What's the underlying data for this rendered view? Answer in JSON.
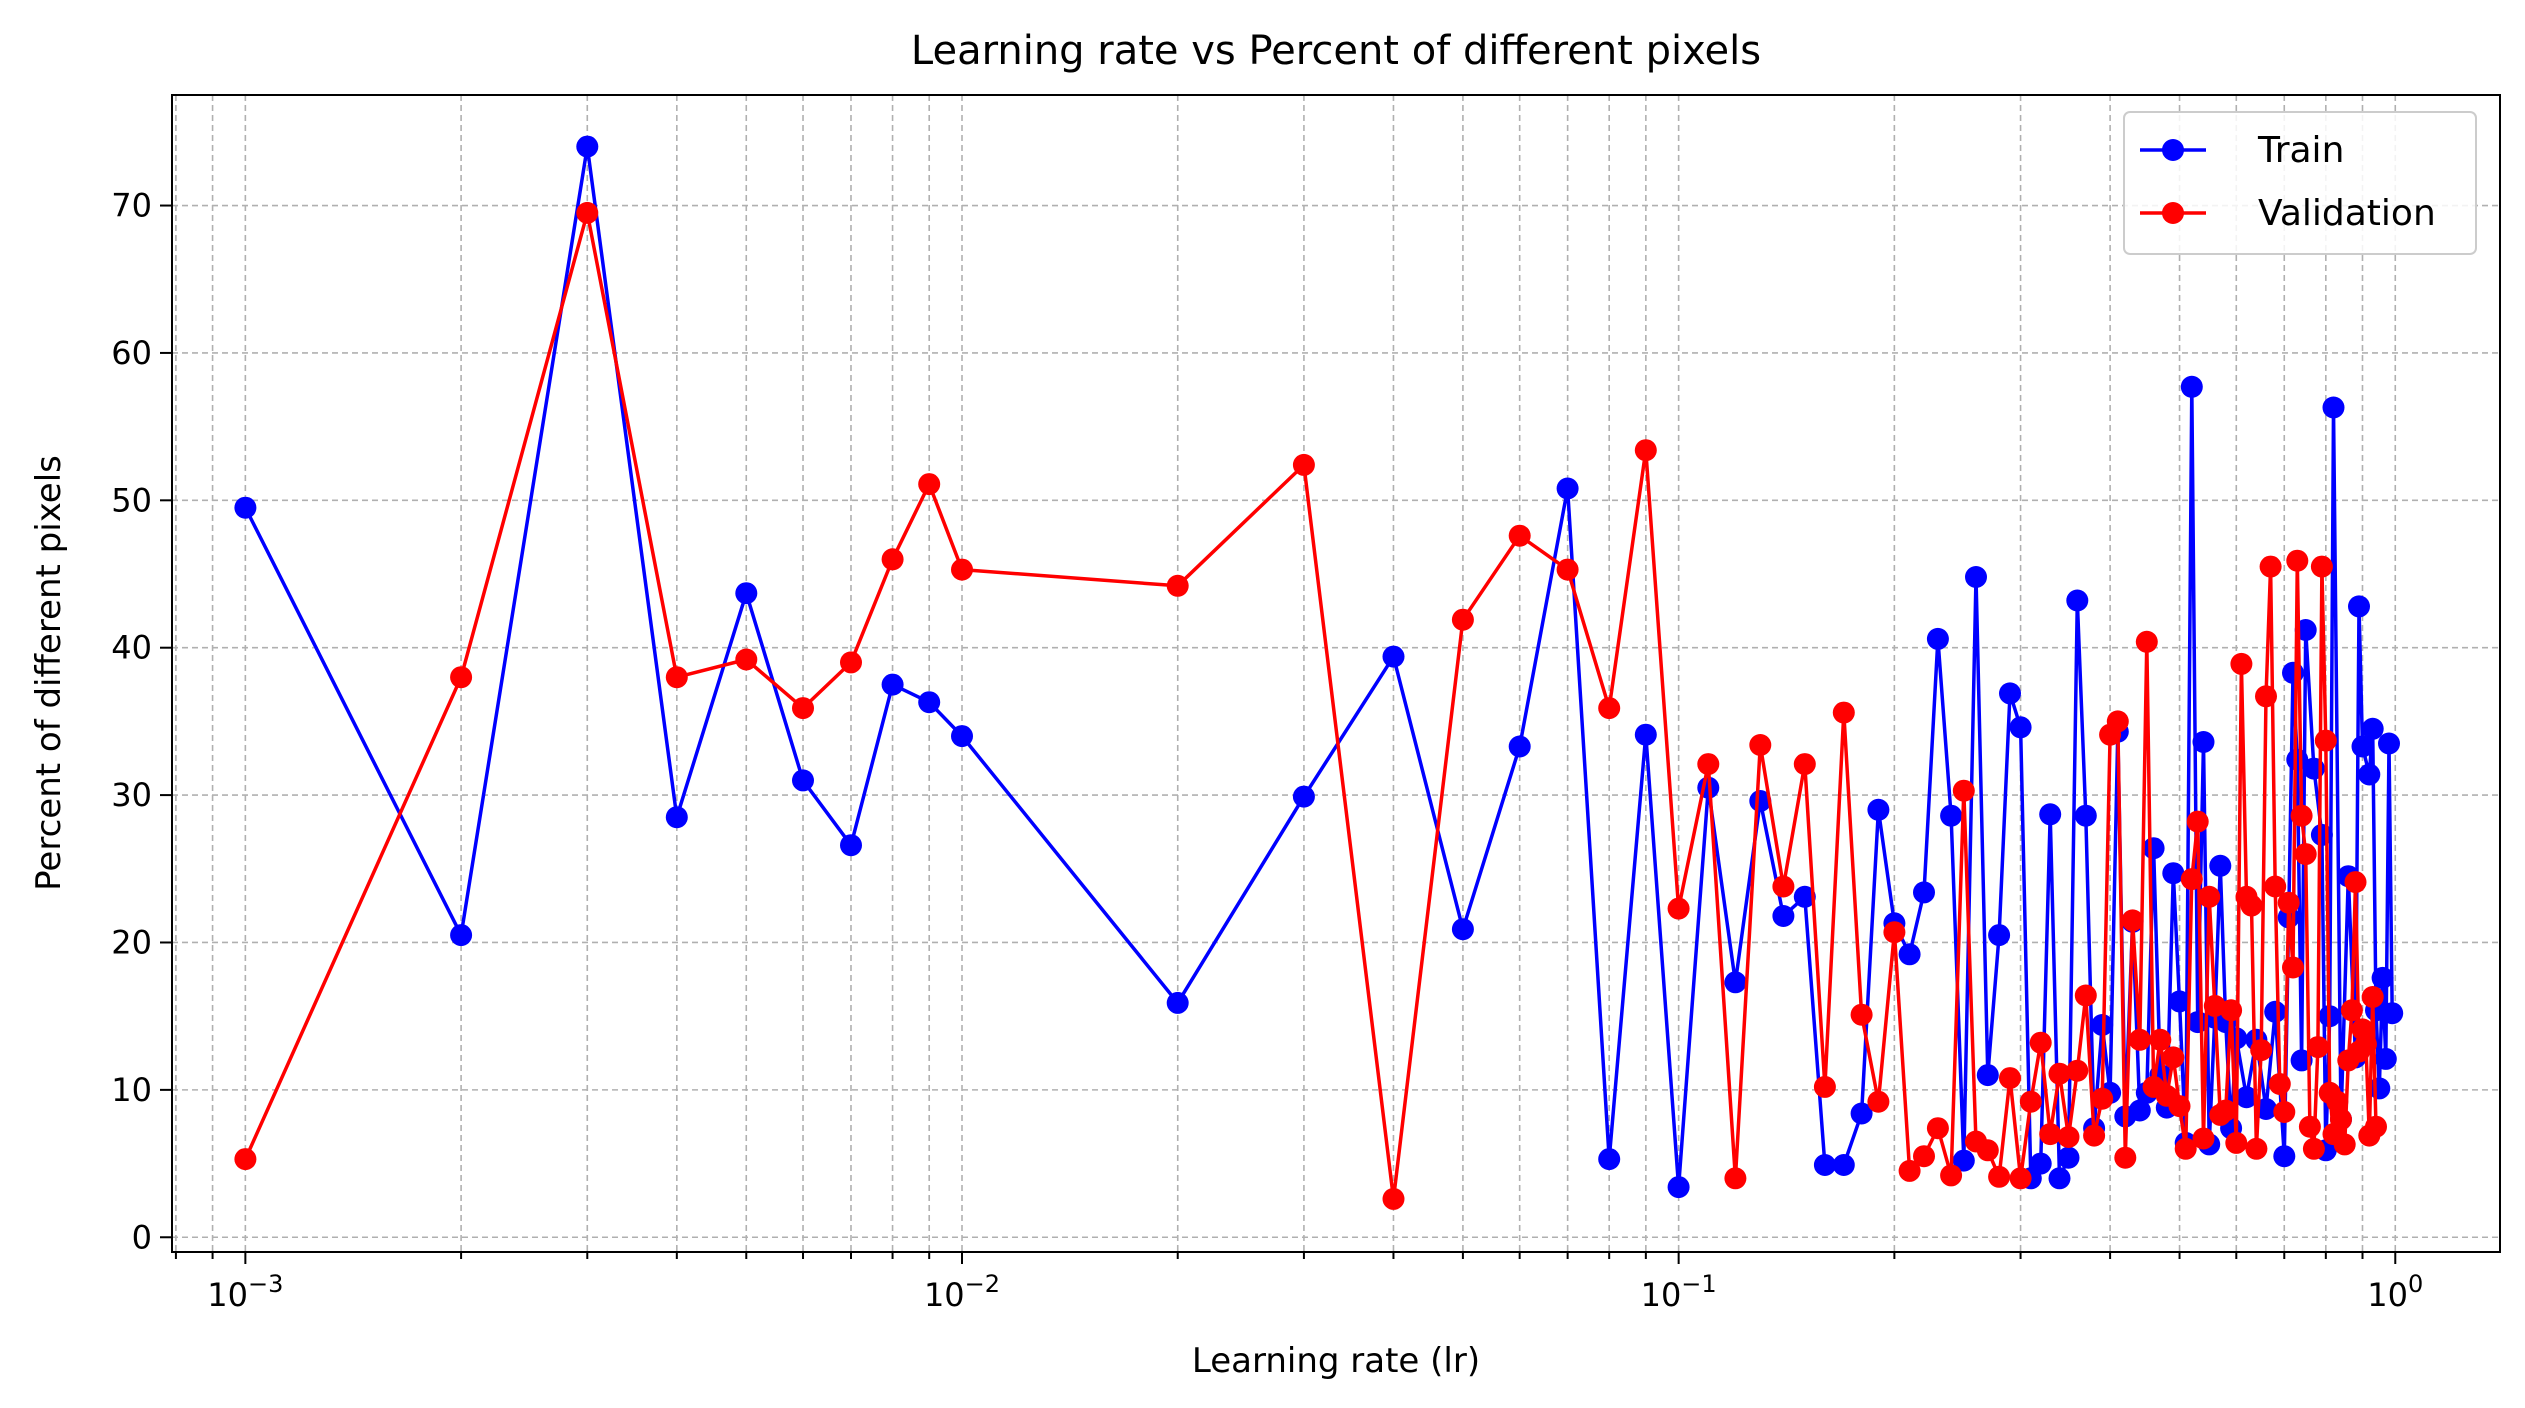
{
  "chart_data": {
    "type": "line",
    "title": "Learning rate vs Percent of different pixels",
    "xlabel": "Learning rate (lr)",
    "ylabel": "Percent of different pixels",
    "xscale": "log",
    "xlim": [
      0.00079,
      1.4
    ],
    "ylim": [
      -1,
      77.5
    ],
    "grid": true,
    "legend_position": "top-right",
    "x_ticks": [
      {
        "value": 0.001,
        "base": "10",
        "exp": "−3"
      },
      {
        "value": 0.01,
        "base": "10",
        "exp": "−2"
      },
      {
        "value": 0.1,
        "base": "10",
        "exp": "−1"
      },
      {
        "value": 1,
        "base": "10",
        "exp": "0"
      }
    ],
    "y_ticks": [
      0,
      10,
      20,
      30,
      40,
      50,
      60,
      70
    ],
    "series": [
      {
        "name": "Train",
        "color": "#0000ff",
        "points": [
          [
            0.001,
            49.5
          ],
          [
            0.002,
            20.5
          ],
          [
            0.003,
            74.0
          ],
          [
            0.004,
            28.5
          ],
          [
            0.005,
            43.7
          ],
          [
            0.006,
            31.0
          ],
          [
            0.007,
            26.6
          ],
          [
            0.008,
            37.5
          ],
          [
            0.009,
            36.3
          ],
          [
            0.01,
            34.0
          ],
          [
            0.02,
            15.9
          ],
          [
            0.03,
            29.9
          ],
          [
            0.04,
            39.4
          ],
          [
            0.05,
            20.9
          ],
          [
            0.06,
            33.3
          ],
          [
            0.07,
            50.8
          ],
          [
            0.08,
            5.3
          ],
          [
            0.09,
            34.1
          ],
          [
            0.1,
            3.4
          ],
          [
            0.11,
            30.5
          ],
          [
            0.12,
            17.3
          ],
          [
            0.13,
            29.6
          ],
          [
            0.14,
            21.8
          ],
          [
            0.15,
            23.1
          ],
          [
            0.16,
            4.9
          ],
          [
            0.17,
            4.9
          ],
          [
            0.18,
            8.4
          ],
          [
            0.19,
            29.0
          ],
          [
            0.2,
            21.3
          ],
          [
            0.21,
            19.2
          ],
          [
            0.22,
            23.4
          ],
          [
            0.23,
            40.6
          ],
          [
            0.24,
            28.6
          ],
          [
            0.25,
            5.2
          ],
          [
            0.26,
            44.8
          ],
          [
            0.27,
            11.0
          ],
          [
            0.28,
            20.5
          ],
          [
            0.29,
            36.9
          ],
          [
            0.3,
            34.6
          ],
          [
            0.31,
            4.0
          ],
          [
            0.32,
            5.0
          ],
          [
            0.33,
            28.7
          ],
          [
            0.34,
            4.0
          ],
          [
            0.35,
            5.4
          ],
          [
            0.36,
            43.2
          ],
          [
            0.37,
            28.6
          ],
          [
            0.38,
            7.4
          ],
          [
            0.39,
            14.4
          ],
          [
            0.4,
            9.8
          ],
          [
            0.41,
            34.3
          ],
          [
            0.42,
            8.2
          ],
          [
            0.43,
            21.4
          ],
          [
            0.44,
            8.6
          ],
          [
            0.45,
            9.8
          ],
          [
            0.46,
            26.4
          ],
          [
            0.47,
            11.0
          ],
          [
            0.48,
            8.8
          ],
          [
            0.49,
            24.7
          ],
          [
            0.5,
            16.0
          ],
          [
            0.51,
            6.4
          ],
          [
            0.52,
            57.7
          ],
          [
            0.53,
            14.6
          ],
          [
            0.54,
            33.6
          ],
          [
            0.55,
            6.3
          ],
          [
            0.56,
            14.9
          ],
          [
            0.57,
            25.2
          ],
          [
            0.58,
            14.6
          ],
          [
            0.59,
            7.4
          ],
          [
            0.6,
            13.5
          ],
          [
            0.62,
            9.5
          ],
          [
            0.64,
            13.4
          ],
          [
            0.66,
            8.7
          ],
          [
            0.68,
            15.3
          ],
          [
            0.7,
            5.5
          ],
          [
            0.71,
            21.7
          ],
          [
            0.72,
            38.3
          ],
          [
            0.73,
            32.4
          ],
          [
            0.74,
            12.0
          ],
          [
            0.75,
            41.2
          ],
          [
            0.77,
            31.8
          ],
          [
            0.79,
            27.3
          ],
          [
            0.8,
            5.9
          ],
          [
            0.81,
            15.0
          ],
          [
            0.82,
            56.3
          ],
          [
            0.84,
            8.0
          ],
          [
            0.86,
            24.5
          ],
          [
            0.88,
            12.2
          ],
          [
            0.89,
            42.8
          ],
          [
            0.9,
            33.3
          ],
          [
            0.92,
            31.4
          ],
          [
            0.93,
            34.5
          ],
          [
            0.94,
            15.4
          ],
          [
            0.95,
            10.1
          ],
          [
            0.96,
            17.6
          ],
          [
            0.97,
            12.1
          ],
          [
            0.98,
            33.5
          ],
          [
            0.99,
            15.2
          ]
        ]
      },
      {
        "name": "Validation",
        "color": "#ff0000",
        "points": [
          [
            0.001,
            5.3
          ],
          [
            0.002,
            38.0
          ],
          [
            0.003,
            69.5
          ],
          [
            0.004,
            38.0
          ],
          [
            0.005,
            39.2
          ],
          [
            0.006,
            35.9
          ],
          [
            0.007,
            39.0
          ],
          [
            0.008,
            46.0
          ],
          [
            0.009,
            51.1
          ],
          [
            0.01,
            45.3
          ],
          [
            0.02,
            44.2
          ],
          [
            0.03,
            52.4
          ],
          [
            0.04,
            2.6
          ],
          [
            0.05,
            41.9
          ],
          [
            0.06,
            47.6
          ],
          [
            0.07,
            45.3
          ],
          [
            0.08,
            35.9
          ],
          [
            0.09,
            53.4
          ],
          [
            0.1,
            22.3
          ],
          [
            0.11,
            32.1
          ],
          [
            0.12,
            4.0
          ],
          [
            0.13,
            33.4
          ],
          [
            0.14,
            23.8
          ],
          [
            0.15,
            32.1
          ],
          [
            0.16,
            10.2
          ],
          [
            0.17,
            35.6
          ],
          [
            0.18,
            15.1
          ],
          [
            0.19,
            9.2
          ],
          [
            0.2,
            20.7
          ],
          [
            0.21,
            4.5
          ],
          [
            0.22,
            5.5
          ],
          [
            0.23,
            7.4
          ],
          [
            0.24,
            4.2
          ],
          [
            0.25,
            30.3
          ],
          [
            0.26,
            6.5
          ],
          [
            0.27,
            5.9
          ],
          [
            0.28,
            4.1
          ],
          [
            0.29,
            10.8
          ],
          [
            0.3,
            4.0
          ],
          [
            0.31,
            9.2
          ],
          [
            0.32,
            13.2
          ],
          [
            0.33,
            7.0
          ],
          [
            0.34,
            11.1
          ],
          [
            0.35,
            6.8
          ],
          [
            0.36,
            11.3
          ],
          [
            0.37,
            16.4
          ],
          [
            0.38,
            6.9
          ],
          [
            0.39,
            9.4
          ],
          [
            0.4,
            34.1
          ],
          [
            0.41,
            35.0
          ],
          [
            0.42,
            5.4
          ],
          [
            0.43,
            21.5
          ],
          [
            0.44,
            13.4
          ],
          [
            0.45,
            40.4
          ],
          [
            0.46,
            10.2
          ],
          [
            0.47,
            13.4
          ],
          [
            0.48,
            9.6
          ],
          [
            0.49,
            12.2
          ],
          [
            0.5,
            8.9
          ],
          [
            0.51,
            6.0
          ],
          [
            0.52,
            24.3
          ],
          [
            0.53,
            28.2
          ],
          [
            0.54,
            6.7
          ],
          [
            0.55,
            23.1
          ],
          [
            0.56,
            15.7
          ],
          [
            0.57,
            8.3
          ],
          [
            0.58,
            8.6
          ],
          [
            0.59,
            15.4
          ],
          [
            0.6,
            6.4
          ],
          [
            0.61,
            38.9
          ],
          [
            0.62,
            23.1
          ],
          [
            0.63,
            22.5
          ],
          [
            0.64,
            6.0
          ],
          [
            0.65,
            12.7
          ],
          [
            0.66,
            36.7
          ],
          [
            0.67,
            45.5
          ],
          [
            0.68,
            23.8
          ],
          [
            0.69,
            10.4
          ],
          [
            0.7,
            8.5
          ],
          [
            0.71,
            22.7
          ],
          [
            0.72,
            18.3
          ],
          [
            0.73,
            45.9
          ],
          [
            0.74,
            28.6
          ],
          [
            0.75,
            26.0
          ],
          [
            0.76,
            7.5
          ],
          [
            0.77,
            6.0
          ],
          [
            0.78,
            12.9
          ],
          [
            0.79,
            45.5
          ],
          [
            0.8,
            33.7
          ],
          [
            0.81,
            9.8
          ],
          [
            0.82,
            7.0
          ],
          [
            0.83,
            9.2
          ],
          [
            0.84,
            8.0
          ],
          [
            0.85,
            6.3
          ],
          [
            0.86,
            12.0
          ],
          [
            0.87,
            15.4
          ],
          [
            0.88,
            24.1
          ],
          [
            0.89,
            12.6
          ],
          [
            0.9,
            14.1
          ],
          [
            0.91,
            13.1
          ],
          [
            0.92,
            6.9
          ],
          [
            0.93,
            16.3
          ],
          [
            0.94,
            7.5
          ]
        ]
      }
    ]
  }
}
